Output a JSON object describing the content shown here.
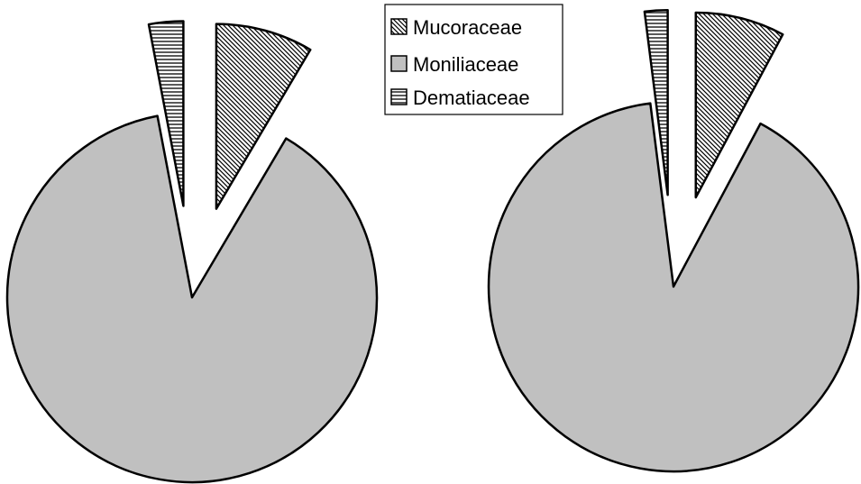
{
  "chart_data": [
    {
      "type": "pie",
      "categories": [
        "Mucoraceae",
        "Moniliaceae",
        "Dematiaceae"
      ],
      "values": [
        8.5,
        88.5,
        3.0
      ],
      "exploded": [
        true,
        false,
        true
      ],
      "legend_placement": "top-center"
    },
    {
      "type": "pie",
      "categories": [
        "Mucoraceae",
        "Moniliaceae",
        "Dematiaceae"
      ],
      "values": [
        7.8,
        90.2,
        2.0
      ],
      "exploded": [
        true,
        false,
        true
      ],
      "legend_placement": "top-center"
    }
  ],
  "legend": {
    "items": [
      {
        "label": "Mucoraceae",
        "pattern": "diagonal-hatch"
      },
      {
        "label": "Moniliaceae",
        "pattern": "solid-gray"
      },
      {
        "label": "Dematiaceae",
        "pattern": "horizontal-lines"
      }
    ]
  },
  "colors": {
    "moniliaceae_fill": "#c0c0c0",
    "outline": "#000000",
    "background": "#ffffff"
  }
}
